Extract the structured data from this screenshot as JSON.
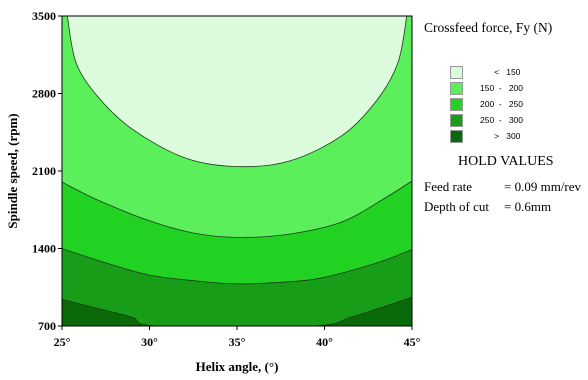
{
  "chart_data": {
    "type": "contour",
    "title": "",
    "xlabel": "Helix angle, (°)",
    "ylabel": "Spindle speed, (rpm)",
    "xlim": [
      25,
      45
    ],
    "ylim": [
      700,
      3500
    ],
    "x_ticks": [
      "25°",
      "30°",
      "35°",
      "40°",
      "45°"
    ],
    "x_tick_values": [
      25,
      30,
      35,
      40,
      45
    ],
    "y_ticks": [
      "700",
      "1400",
      "2100",
      "2800",
      "3500"
    ],
    "y_tick_values": [
      700,
      1400,
      2100,
      2800,
      3500
    ],
    "response": "Crossfeed force, Fy (N)",
    "contour_levels": [
      150,
      200,
      250,
      300
    ],
    "contours": [
      {
        "level": 150,
        "points": [
          [
            25.3,
            3500
          ],
          [
            25.8,
            3080
          ],
          [
            27.0,
            2780
          ],
          [
            29.0,
            2480
          ],
          [
            32.0,
            2220
          ],
          [
            35.0,
            2140
          ],
          [
            38.0,
            2190
          ],
          [
            41.0,
            2420
          ],
          [
            43.0,
            2740
          ],
          [
            44.2,
            3080
          ],
          [
            44.7,
            3500
          ]
        ]
      },
      {
        "level": 200,
        "points": [
          [
            25,
            2000
          ],
          [
            27.0,
            1840
          ],
          [
            30.0,
            1650
          ],
          [
            32.5,
            1540
          ],
          [
            35.0,
            1500
          ],
          [
            38.0,
            1530
          ],
          [
            41.0,
            1640
          ],
          [
            43.5,
            1860
          ],
          [
            45,
            2010
          ]
        ]
      },
      {
        "level": 250,
        "points": [
          [
            25,
            1400
          ],
          [
            27.5,
            1270
          ],
          [
            30.0,
            1160
          ],
          [
            32.5,
            1110
          ],
          [
            35.0,
            1080
          ],
          [
            38.0,
            1100
          ],
          [
            40.0,
            1140
          ],
          [
            43.0,
            1270
          ],
          [
            45,
            1390
          ]
        ]
      },
      {
        "level": 300,
        "points": [
          [
            25,
            940
          ],
          [
            27.0,
            860
          ],
          [
            29.0,
            780
          ],
          [
            30.5,
            700
          ],
          [
            39.3,
            700
          ],
          [
            41.5,
            780
          ],
          [
            43.5,
            880
          ],
          [
            45,
            960
          ]
        ]
      }
    ],
    "bands": [
      {
        "range": "< 150",
        "color": "#dcfadc"
      },
      {
        "range": "150 - 200",
        "color": "#5cef5c"
      },
      {
        "range": "200 - 250",
        "color": "#22d222"
      },
      {
        "range": "250 - 300",
        "color": "#179d17"
      },
      {
        "range": "> 300",
        "color": "#0a6a0a"
      }
    ],
    "grid": false,
    "legend_position": "right"
  },
  "legend": {
    "title": "Crossfeed force, Fy (N)",
    "items": [
      "      <   150",
      "150  -   200",
      "200  -   250",
      "250  -   300",
      "      >   300"
    ]
  },
  "hold": {
    "title": "HOLD VALUES",
    "rows": [
      {
        "label": "Feed rate",
        "value": "= 0.09 mm/rev"
      },
      {
        "label": "Depth of cut",
        "value": "= 0.6mm"
      }
    ]
  }
}
